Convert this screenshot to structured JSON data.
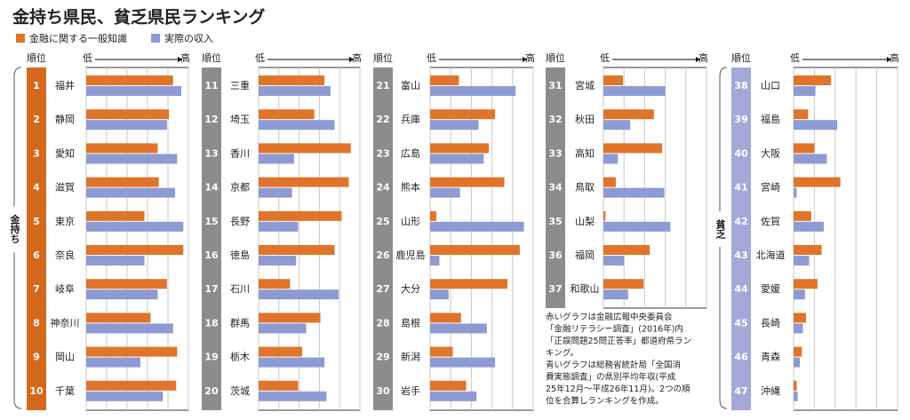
{
  "chart_data": {
    "type": "bar",
    "orientation": "horizontal",
    "title": "金持ち県民、貧乏県民ランキング",
    "rank_header": "順位",
    "axis_low": "低",
    "axis_high": "高",
    "side_labels": [
      "金持ち",
      "貧乏"
    ],
    "ranks": [
      1,
      2,
      3,
      4,
      5,
      6,
      7,
      8,
      9,
      10,
      11,
      12,
      13,
      14,
      15,
      16,
      17,
      18,
      19,
      20,
      21,
      22,
      23,
      24,
      25,
      26,
      27,
      28,
      29,
      30,
      31,
      32,
      33,
      34,
      35,
      36,
      37,
      38,
      39,
      40,
      41,
      42,
      43,
      44,
      45,
      46,
      47
    ],
    "categories": [
      "福井",
      "静岡",
      "愛知",
      "滋賀",
      "東京",
      "奈良",
      "岐阜",
      "神奈川",
      "岡山",
      "千葉",
      "三重",
      "埼玉",
      "香川",
      "京都",
      "長野",
      "徳島",
      "石川",
      "群馬",
      "栃木",
      "茨城",
      "富山",
      "兵庫",
      "広島",
      "熊本",
      "山形",
      "鹿児島",
      "大分",
      "島根",
      "新潟",
      "岩手",
      "宮城",
      "秋田",
      "高知",
      "鳥取",
      "山梨",
      "福岡",
      "和歌山",
      "山口",
      "福島",
      "大阪",
      "宮崎",
      "佐賀",
      "北海道",
      "愛媛",
      "長崎",
      "青森",
      "沖縄"
    ],
    "series": [
      {
        "name": "金融に関する一般知識",
        "color": "#e0742a",
        "values": [
          85,
          81,
          70,
          71,
          57,
          95,
          79,
          63,
          89,
          88,
          65,
          55,
          91,
          89,
          82,
          75,
          31,
          61,
          43,
          39,
          28,
          63,
          57,
          72,
          6,
          87,
          75,
          30,
          22,
          35,
          19,
          49,
          57,
          12,
          2,
          45,
          39,
          36,
          14,
          20,
          45,
          17,
          27,
          23,
          12,
          8,
          3
        ]
      },
      {
        "name": "実際の収入",
        "color": "#8d9ad3",
        "values": [
          93,
          79,
          89,
          87,
          95,
          57,
          70,
          85,
          53,
          75,
          71,
          75,
          35,
          33,
          39,
          37,
          79,
          47,
          65,
          67,
          83,
          47,
          52,
          29,
          91,
          9,
          18,
          55,
          63,
          45,
          60,
          26,
          14,
          59,
          65,
          20,
          24,
          21,
          42,
          32,
          3,
          29,
          15,
          11,
          9,
          6,
          4
        ]
      }
    ],
    "xlim": [
      0,
      100
    ],
    "xticks": [
      0,
      20,
      40,
      60,
      80,
      100
    ],
    "grid": true,
    "note": [
      "赤いグラフは金融広報中央委員会",
      "「金融リテラシー調査」(2016年)内",
      "「正誤問題25問正答率」都道府県ラン",
      "キング。",
      "青いグラフは総務省統計局「全国消",
      "費実態調査」の県別平均年収(平成",
      "25年12月～平成26年11月)。2つの順",
      "位を合算しランキングを作成。"
    ]
  }
}
